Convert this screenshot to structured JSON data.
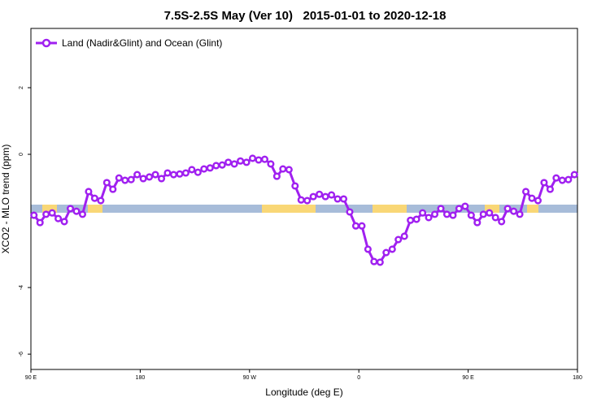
{
  "chart_data": {
    "type": "line",
    "title": "7.5S-2.5S May (Ver 10)   2015-01-01 to 2020-12-18",
    "xlabel": "Longitude (deg E)",
    "ylabel": "XCO2 - MLO trend (ppm)",
    "xlim": [
      90,
      540
    ],
    "ylim": [
      -6.46,
      3.78
    ],
    "xticks": [
      {
        "value": 90,
        "label": "90 E"
      },
      180,
      {
        "value": 270,
        "label": "90 W"
      },
      {
        "value": 360,
        "label": "0"
      },
      {
        "value": 450,
        "label": "90 E"
      },
      {
        "value": 540,
        "label": "180"
      }
    ],
    "yticks": [
      -6,
      -4,
      0,
      2
    ],
    "legend": "top-left",
    "x": [
      92.5,
      97.5,
      102.5,
      107.5,
      112.5,
      117.5,
      122.5,
      127.5,
      132.5,
      137.5,
      142.5,
      147.5,
      152.5,
      157.5,
      162.5,
      167.5,
      172.5,
      177.5,
      182.5,
      187.5,
      192.5,
      197.5,
      202.5,
      207.5,
      212.5,
      217.5,
      222.5,
      227.5,
      232.5,
      237.5,
      242.5,
      247.5,
      252.5,
      257.5,
      262.5,
      267.5,
      272.5,
      277.5,
      282.5,
      287.5,
      292.5,
      297.5,
      302.5,
      307.5,
      312.5,
      317.5,
      322.5,
      327.5,
      332.5,
      337.5,
      342.5,
      347.5,
      352.5,
      357.5,
      362.5,
      367.5,
      372.5,
      377.5,
      382.5,
      387.5,
      392.5,
      397.5,
      402.5,
      407.5,
      412.5,
      417.5,
      422.5,
      427.5,
      432.5,
      437.5,
      442.5,
      447.5,
      452.5,
      457.5,
      462.5,
      467.5,
      472.5,
      477.5,
      482.5,
      487.5,
      492.5,
      497.5,
      502.5,
      507.5,
      512.5,
      517.5,
      522.5,
      527.5,
      532.5,
      537.5
    ],
    "series": [
      {
        "name": "Land (Nadir&Glint) and Ocean (Glint)",
        "color": "#a020f0",
        "values": [
          -1.83,
          -2.05,
          -1.8,
          -1.76,
          -1.93,
          -2.02,
          -1.63,
          -1.71,
          -1.8,
          -1.12,
          -1.32,
          -1.39,
          -0.85,
          -1.05,
          -0.71,
          -0.78,
          -0.76,
          -0.61,
          -0.73,
          -0.68,
          -0.61,
          -0.73,
          -0.56,
          -0.61,
          -0.59,
          -0.56,
          -0.46,
          -0.54,
          -0.44,
          -0.41,
          -0.34,
          -0.32,
          -0.24,
          -0.29,
          -0.2,
          -0.24,
          -0.12,
          -0.17,
          -0.15,
          -0.29,
          -0.66,
          -0.44,
          -0.46,
          -0.95,
          -1.37,
          -1.39,
          -1.27,
          -1.2,
          -1.27,
          -1.22,
          -1.34,
          -1.34,
          -1.73,
          -2.15,
          -2.15,
          -2.85,
          -3.22,
          -3.24,
          -2.95,
          -2.85,
          -2.56,
          -2.46,
          -1.98,
          -1.95,
          -1.76,
          -1.9,
          -1.8,
          -1.63,
          -1.8,
          -1.83,
          -1.63,
          -1.56,
          -1.83,
          -2.05,
          -1.8,
          -1.76,
          -1.9,
          -2.02,
          -1.63,
          -1.71,
          -1.8,
          -1.12,
          -1.32,
          -1.39,
          -0.85,
          -1.05,
          -0.71,
          -0.78,
          -0.76,
          -0.61
        ]
      }
    ]
  }
}
